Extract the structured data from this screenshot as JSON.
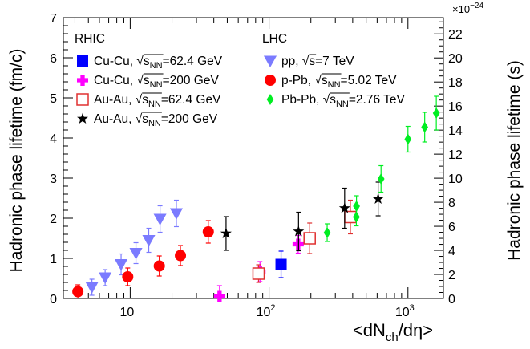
{
  "chart_data": {
    "type": "scatter",
    "xlabel": "<dN_ch/dη>",
    "ylabel_left": "Hadronic phase lifetime (fm/c)",
    "ylabel_right": "Hadronic phase lifetime (s)",
    "right_axis_multiplier": "×10",
    "right_axis_exponent": "−24",
    "x_scale": "log",
    "xlim": [
      3.3,
      1800
    ],
    "ylim": [
      0,
      7
    ],
    "ylim_right": [
      0,
      23.35
    ],
    "x_tick_labels": [
      "10",
      "10",
      "10"
    ],
    "x_tick_exponents": [
      "",
      "2",
      "3"
    ],
    "x_tick_values": [
      10,
      100,
      1000
    ],
    "y_ticks": [
      "0",
      "1",
      "2",
      "3",
      "4",
      "5",
      "6",
      "7"
    ],
    "y_right_ticks": [
      "0",
      "2",
      "4",
      "6",
      "8",
      "10",
      "12",
      "14",
      "16",
      "18",
      "20",
      "22"
    ],
    "grid": false,
    "legend_groups": [
      {
        "title": "RHIC",
        "placement": "top-left"
      },
      {
        "title": "LHC",
        "placement": "top-center"
      }
    ],
    "series": [
      {
        "label_prefix": "Cu-Cu, ",
        "label_sqrt": "s",
        "label_sub": "NN",
        "label_suffix": "=62.4 GeV",
        "group": "RHIC",
        "marker": "square",
        "color": "#0000ff",
        "points": [
          {
            "x": 122,
            "y": 0.85,
            "err": 0.33
          }
        ]
      },
      {
        "label_prefix": "Cu-Cu, ",
        "label_sqrt": "s",
        "label_sub": "NN",
        "label_suffix": "=200 GeV",
        "group": "RHIC",
        "marker": "cross",
        "color": "#ff00ff",
        "points": [
          {
            "x": 44,
            "y": 0.05,
            "err": 0.27
          },
          {
            "x": 86,
            "y": 0.67,
            "err": 0.25
          },
          {
            "x": 162,
            "y": 1.35,
            "err": 0.22
          }
        ]
      },
      {
        "label_prefix": "Au-Au, ",
        "label_sqrt": "s",
        "label_sub": "NN",
        "label_suffix": "=62.4 GeV",
        "group": "RHIC",
        "marker": "open-square",
        "color": "#e03030",
        "points": [
          {
            "x": 84,
            "y": 0.62,
            "err": 0.22
          },
          {
            "x": 196,
            "y": 1.5,
            "err": 0.38
          },
          {
            "x": 385,
            "y": 2.03,
            "err": 0.42
          }
        ]
      },
      {
        "label_prefix": "Au-Au, ",
        "label_sqrt": "s",
        "label_sub": "NN",
        "label_suffix": "=200 GeV",
        "group": "RHIC",
        "marker": "star",
        "color": "#000000",
        "points": [
          {
            "x": 49,
            "y": 1.62,
            "err": 0.42
          },
          {
            "x": 163,
            "y": 1.67,
            "err": 0.48
          },
          {
            "x": 350,
            "y": 2.25,
            "err": 0.5
          },
          {
            "x": 610,
            "y": 2.48,
            "err": 0.42
          }
        ]
      },
      {
        "label_prefix": "pp, ",
        "label_sqrt": "s",
        "label_sub": "",
        "label_suffix": "=7 TeV",
        "group": "LHC",
        "marker": "triangle-down",
        "color": "#7b7bff",
        "points": [
          {
            "x": 5.3,
            "y": 0.28,
            "err": 0.2
          },
          {
            "x": 6.6,
            "y": 0.52,
            "err": 0.2
          },
          {
            "x": 8.6,
            "y": 0.85,
            "err": 0.26
          },
          {
            "x": 11,
            "y": 1.13,
            "err": 0.26
          },
          {
            "x": 13.6,
            "y": 1.45,
            "err": 0.3
          },
          {
            "x": 16.4,
            "y": 1.98,
            "err": 0.33
          },
          {
            "x": 21.5,
            "y": 2.12,
            "err": 0.33
          }
        ]
      },
      {
        "label_prefix": "p-Pb, ",
        "label_sqrt": "s",
        "label_sub": "NN",
        "label_suffix": "=5.02 TeV",
        "group": "LHC",
        "marker": "circle",
        "color": "#ff0000",
        "points": [
          {
            "x": 4.2,
            "y": 0.17,
            "err": 0.17
          },
          {
            "x": 9.6,
            "y": 0.54,
            "err": 0.22
          },
          {
            "x": 16.2,
            "y": 0.81,
            "err": 0.25
          },
          {
            "x": 23,
            "y": 1.07,
            "err": 0.25
          },
          {
            "x": 36.5,
            "y": 1.66,
            "err": 0.28
          }
        ]
      },
      {
        "label_prefix": "Pb-Pb, ",
        "label_sqrt": "s",
        "label_sub": "NN",
        "label_suffix": "=2.76 TeV",
        "group": "LHC",
        "marker": "diamond",
        "color": "#00ee22",
        "points": [
          {
            "x": 262,
            "y": 1.64,
            "err": 0.22
          },
          {
            "x": 425,
            "y": 2.03,
            "err": 0.22
          },
          {
            "x": 426,
            "y": 2.3,
            "err": 0.26
          },
          {
            "x": 640,
            "y": 2.98,
            "err": 0.33
          },
          {
            "x": 1000,
            "y": 3.97,
            "err": 0.32
          },
          {
            "x": 1320,
            "y": 4.27,
            "err": 0.37
          },
          {
            "x": 1600,
            "y": 4.62,
            "err": 0.42
          }
        ]
      }
    ]
  }
}
